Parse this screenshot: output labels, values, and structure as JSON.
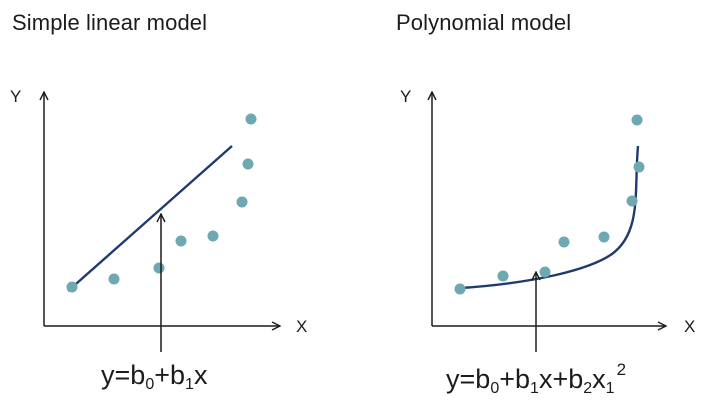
{
  "colors": {
    "fit_line": "#1f3b6e",
    "points": "#6ea8b2",
    "axis": "#1c1c1c"
  },
  "left": {
    "title": "Simple linear model",
    "y_axis_label": "Y",
    "x_axis_label": "X",
    "formula": {
      "y": "y",
      "eq": "=",
      "b0": "b",
      "sub0": "0",
      "plus1": "+",
      "b1": "b",
      "sub1": "1",
      "x": "x"
    }
  },
  "right": {
    "title": "Polynomial model",
    "y_axis_label": "Y",
    "x_axis_label": "X",
    "formula": {
      "y": "y",
      "eq": "=",
      "b0": "b",
      "sub0": "0",
      "plus1": "+",
      "b1": "b",
      "sub1": "1",
      "x1": "x",
      "plus2": "+",
      "b2": "b",
      "sub2": "2",
      "x2": "x",
      "subx": "1",
      "exp": "2"
    }
  }
}
